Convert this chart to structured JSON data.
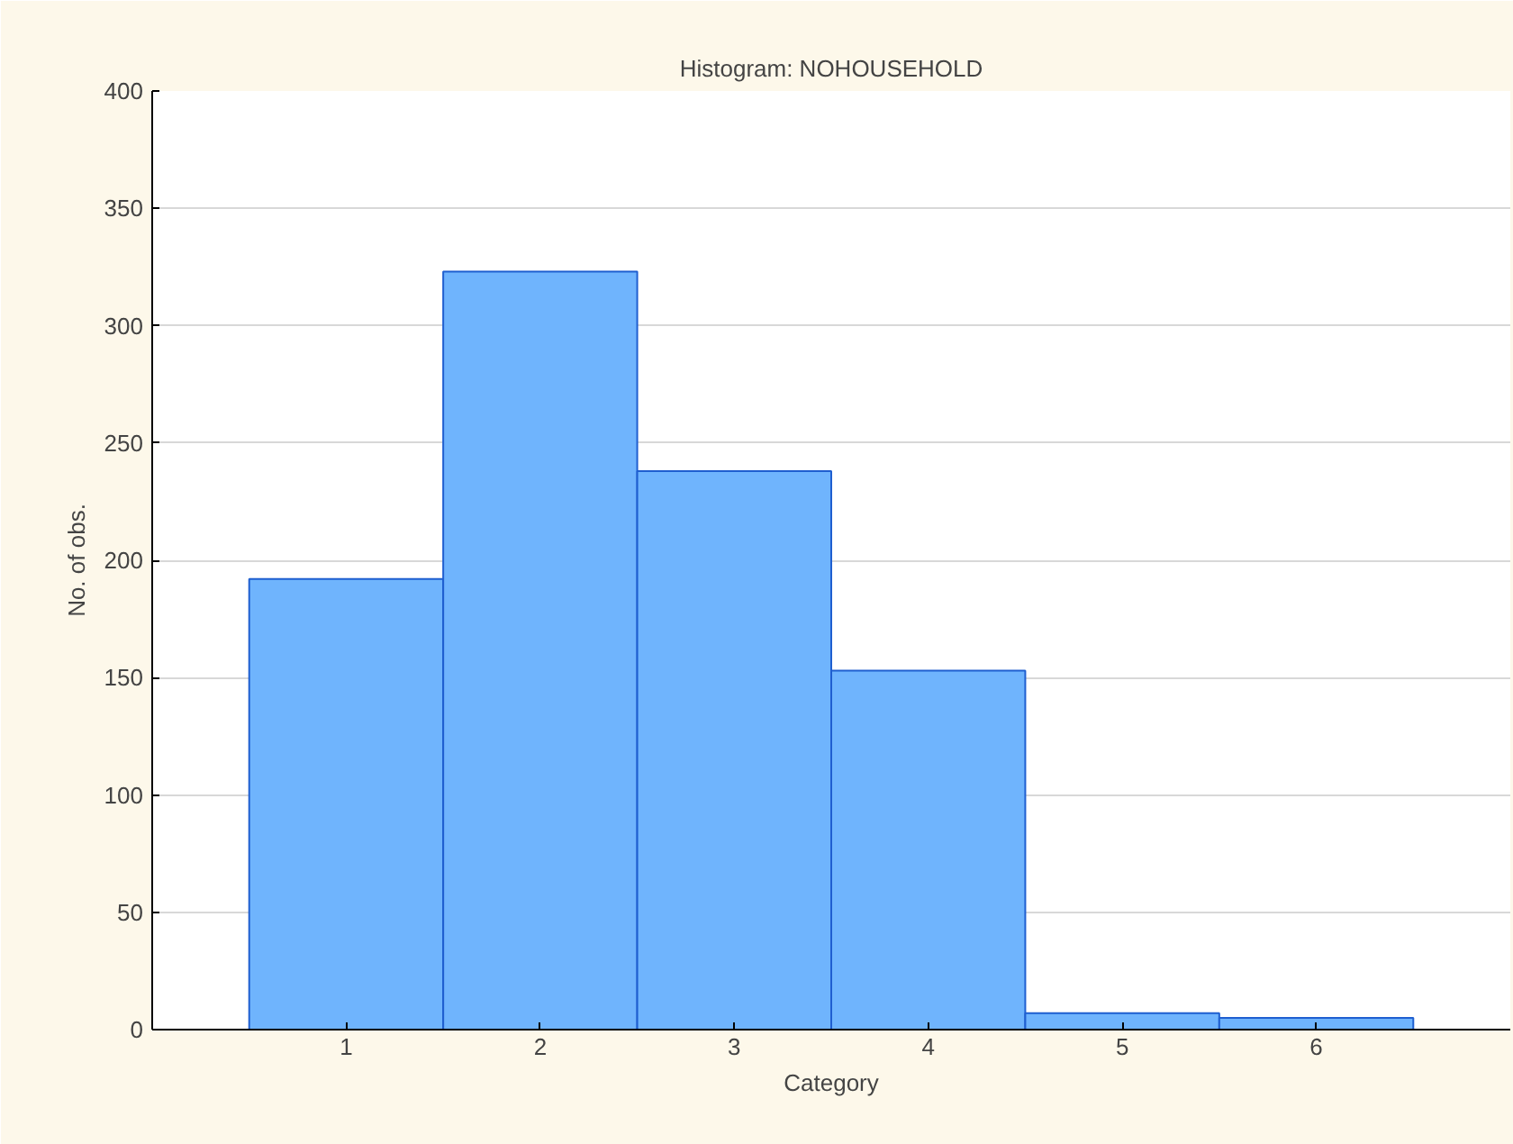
{
  "chart_data": {
    "type": "histogram",
    "title": "Histogram: NOHOUSEHOLD",
    "xlabel": "Category",
    "ylabel": "No. of obs.",
    "bins": [
      0.5,
      1.5,
      2.5,
      3.5,
      4.5,
      5.5,
      6.5
    ],
    "values": [
      192,
      323,
      238,
      153,
      7,
      5
    ],
    "color": "#6fb4fd",
    "xlim": [
      0,
      7
    ],
    "xticks": [
      1,
      2,
      3,
      4,
      5,
      6
    ],
    "ylim": [
      0,
      400
    ],
    "yticks": [
      0,
      50,
      100,
      150,
      200,
      250,
      300,
      350,
      400
    ],
    "grid": "y"
  }
}
